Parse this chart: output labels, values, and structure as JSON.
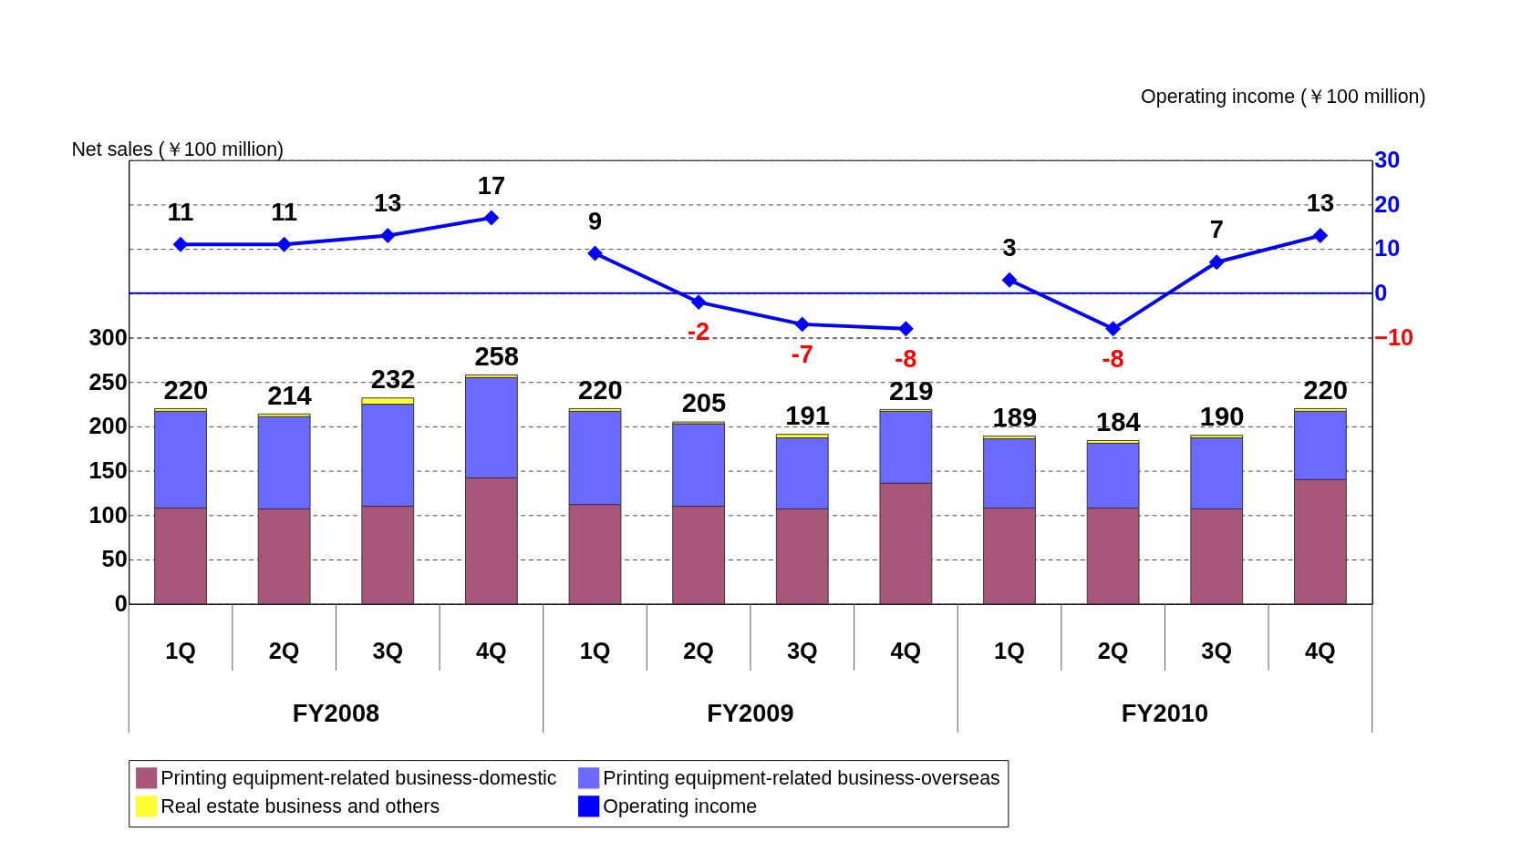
{
  "chart_data": {
    "type": "bar",
    "stacked": true,
    "ylabel": "Net sales (￥100 million)",
    "y2label": "Operating income (￥100 million)",
    "categories": [
      "1Q",
      "2Q",
      "3Q",
      "4Q",
      "1Q",
      "2Q",
      "3Q",
      "4Q",
      "1Q",
      "2Q",
      "3Q",
      "4Q"
    ],
    "annotations": [
      "FY2008",
      "FY2009",
      "FY2010"
    ],
    "series": [
      {
        "name": "Printing equipment-related business-domestic",
        "color": "#a8577a",
        "values": [
          108,
          107,
          110,
          142,
          112,
          110,
          107,
          136,
          108,
          108,
          107,
          140
        ]
      },
      {
        "name": "Printing equipment-related business-overseas",
        "color": "#6a6aff",
        "values": [
          109,
          104,
          115,
          113,
          105,
          93,
          80,
          81,
          78,
          73,
          80,
          77
        ]
      },
      {
        "name": "Real estate business and others",
        "color": "#ffff33",
        "values": [
          3,
          3,
          7,
          3,
          3,
          2,
          4,
          2,
          3,
          3,
          3,
          3
        ]
      },
      {
        "name": "Operating income",
        "type": "line",
        "axis": "y2",
        "color": "#0000ff",
        "marker": "diamond",
        "values": [
          11,
          11,
          13,
          17,
          9,
          -2,
          -7,
          -8,
          3,
          -8,
          7,
          13
        ],
        "value_labels": [
          "11",
          "11",
          "13",
          "17",
          "9",
          "-2",
          "-7",
          "-8",
          "3",
          "-8",
          "7",
          "13"
        ]
      }
    ],
    "totals": [
      "220",
      "214",
      "232",
      "258",
      "220",
      "205",
      "191",
      "219",
      "189",
      "184",
      "190",
      "220"
    ],
    "ylim": [
      0,
      500
    ],
    "yticks": [
      0,
      50,
      100,
      150,
      200,
      250,
      300
    ],
    "y2lim": [
      -70,
      30
    ],
    "y2ticks": [
      -10,
      0,
      10,
      20,
      30
    ],
    "ref_lines": [
      {
        "axis": "y2",
        "value": 0,
        "color": "#0000ff"
      }
    ],
    "grid": "y",
    "legend": "bottom"
  }
}
